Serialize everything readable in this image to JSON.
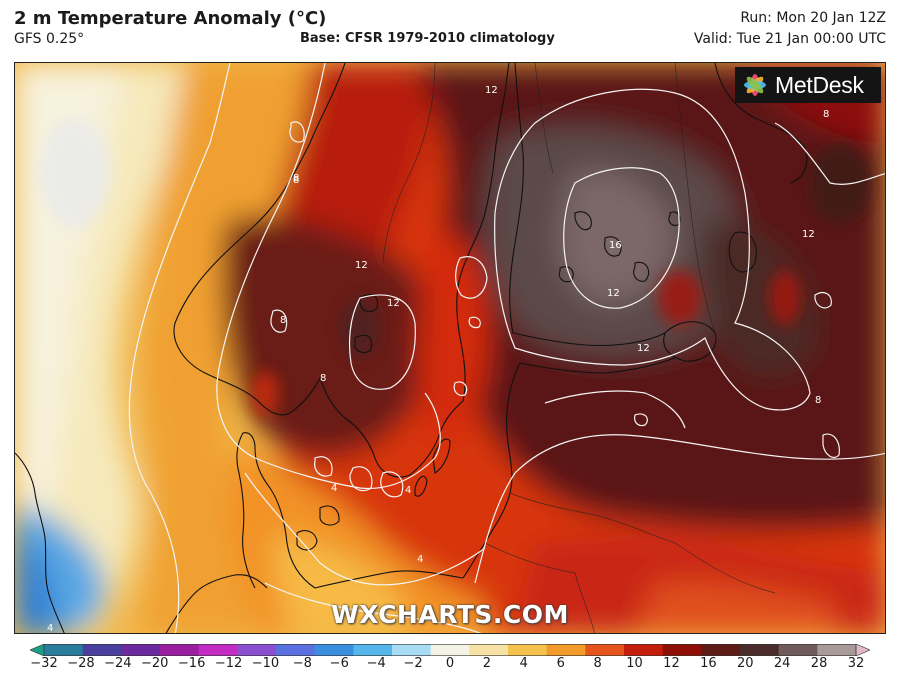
{
  "header": {
    "title": "2 m Temperature Anomaly (°C)",
    "model": "GFS 0.25°",
    "base": "Base: CFSR 1979-2010 climatology",
    "run": "Run: Mon 20 Jan 12Z",
    "valid": "Valid: Tue 21 Jan 00:00 UTC"
  },
  "logo": {
    "text": "MetDesk",
    "icon": "metdesk-star-icon"
  },
  "watermark": "WXCHARTS.COM",
  "colorbar": {
    "ticks": [
      "−32",
      "−28",
      "−24",
      "−20",
      "−16",
      "−12",
      "−10",
      "−8",
      "−6",
      "−4",
      "−2",
      "0",
      "2",
      "4",
      "6",
      "8",
      "10",
      "12",
      "16",
      "20",
      "24",
      "28",
      "32"
    ],
    "colors": [
      "#1d9e86",
      "#2a7d9a",
      "#4a3f9e",
      "#6b2a9e",
      "#9a1f9e",
      "#c22cc2",
      "#8a4fd0",
      "#5a6fe0",
      "#3a8fe0",
      "#55b6ec",
      "#a8dcf4",
      "#f3f3e6",
      "#f7e2a6",
      "#f6c24e",
      "#f29a2a",
      "#e5541a",
      "#c41d0c",
      "#8e0d05",
      "#5e1a14",
      "#4a2c2a",
      "#6f5b5a",
      "#a99a9a",
      "#e3b8c8"
    ]
  },
  "contour_labels": [
    "12",
    "8",
    "8",
    "12",
    "12",
    "16",
    "12",
    "12",
    "12",
    "8",
    "8",
    "8",
    "4",
    "4",
    "4",
    "4",
    "8"
  ]
}
